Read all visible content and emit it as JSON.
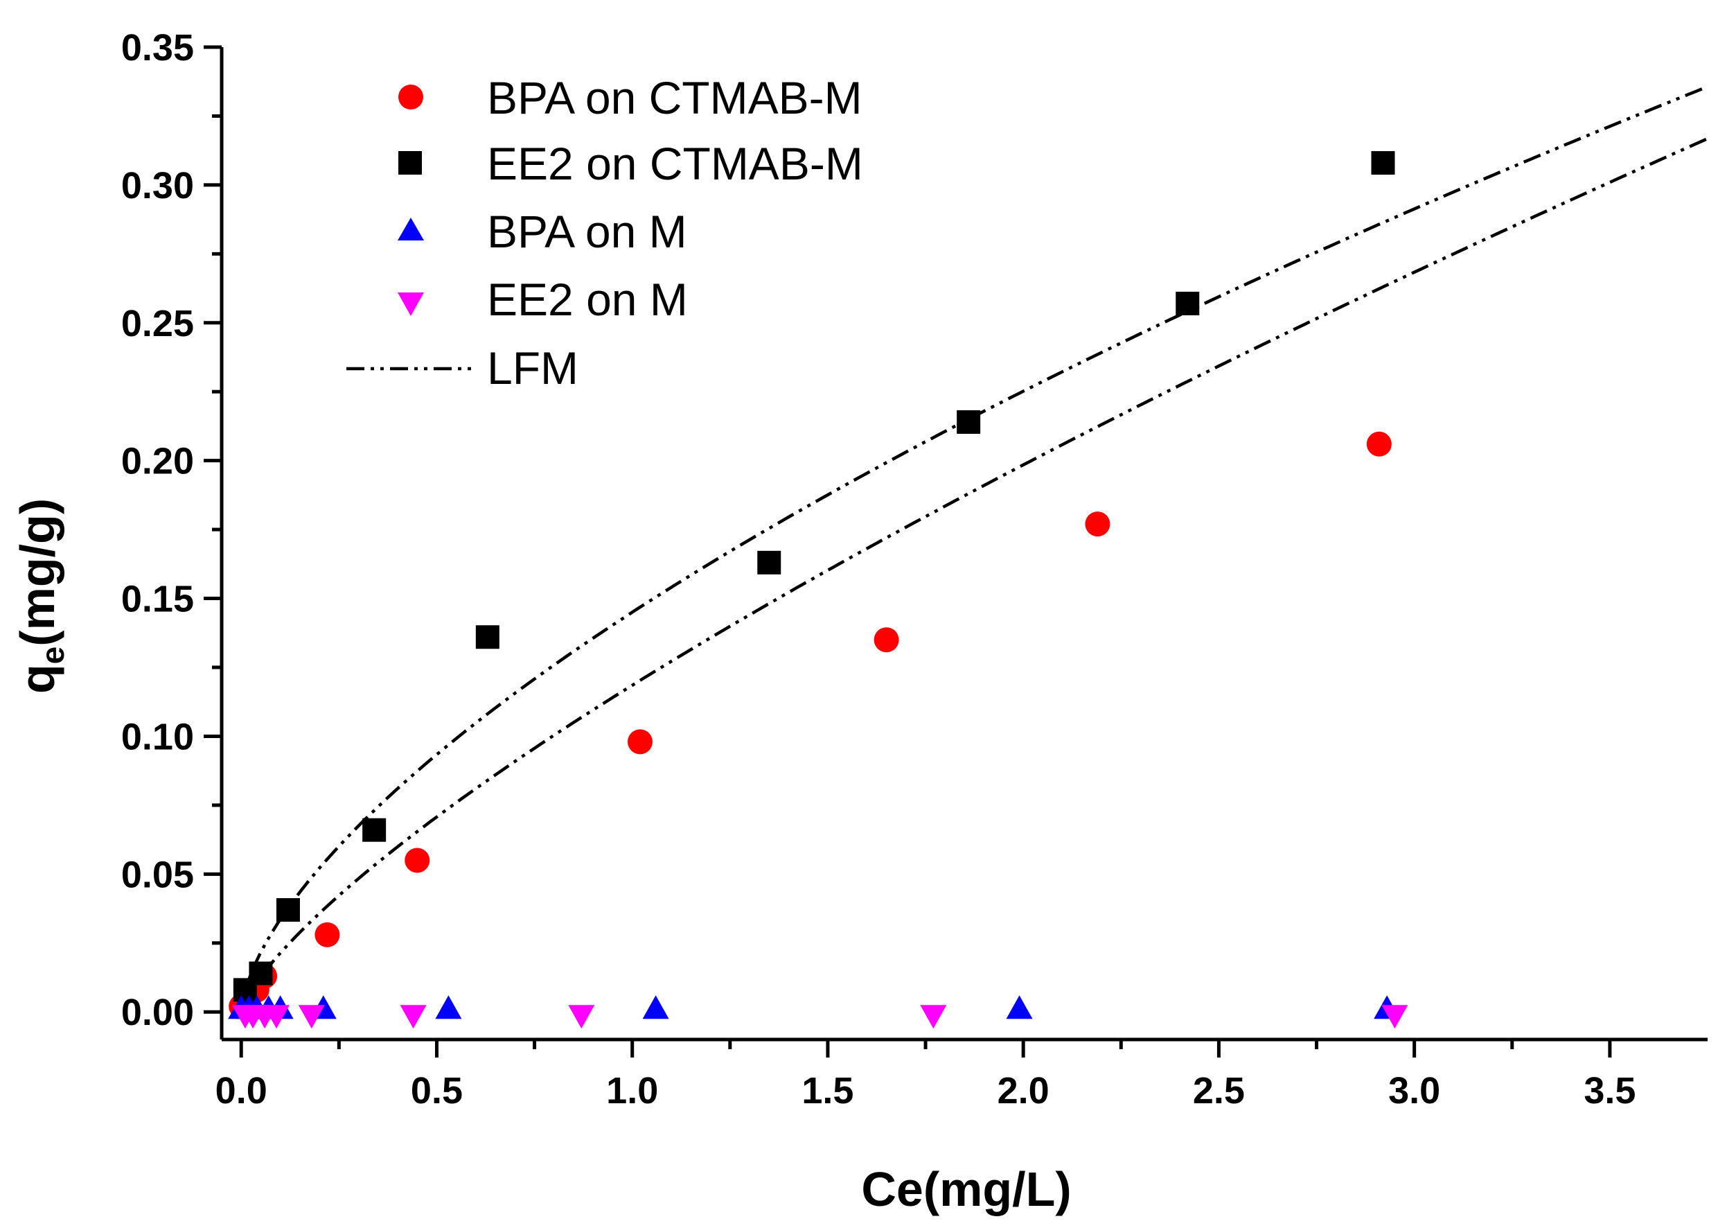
{
  "chart_data": {
    "type": "scatter",
    "title": "",
    "xlabel": "Ce(mg/L)",
    "ylabel_main": "q",
    "ylabel_sub": "e",
    "ylabel_rest": "(mg/g)",
    "xlim": [
      -0.05,
      3.75
    ],
    "ylim": [
      -0.01,
      0.35
    ],
    "xticks": [
      0.0,
      0.5,
      1.0,
      1.5,
      2.0,
      2.5,
      3.0,
      3.5
    ],
    "xtick_labels": [
      "0.0",
      "0.5",
      "1.0",
      "1.5",
      "2.0",
      "2.5",
      "3.0",
      "3.5"
    ],
    "yticks": [
      0.0,
      0.05,
      0.1,
      0.15,
      0.2,
      0.25,
      0.3,
      0.35
    ],
    "ytick_labels": [
      "0.00",
      "0.05",
      "0.10",
      "0.15",
      "0.20",
      "0.25",
      "0.30",
      "0.35"
    ],
    "grid": false,
    "legend_position": "top-left",
    "series": [
      {
        "name": "BPA on CTMAB-M",
        "marker": "circle",
        "color": "#ff0000",
        "x": [
          0.0,
          0.02,
          0.04,
          0.06,
          0.22,
          0.45,
          1.02,
          1.65,
          2.19,
          2.91
        ],
        "y": [
          0.002,
          0.005,
          0.008,
          0.013,
          0.028,
          0.055,
          0.098,
          0.135,
          0.177,
          0.206
        ]
      },
      {
        "name": "EE2 on CTMAB-M",
        "marker": "square",
        "color": "#000000",
        "x": [
          0.01,
          0.05,
          0.12,
          0.34,
          0.63,
          1.35,
          1.86,
          2.42,
          2.92
        ],
        "y": [
          0.008,
          0.014,
          0.037,
          0.066,
          0.136,
          0.163,
          0.214,
          0.257,
          0.308
        ]
      },
      {
        "name": "BPA on M",
        "marker": "triangle-up",
        "color": "#0000ff",
        "x": [
          0.0,
          0.02,
          0.04,
          0.07,
          0.1,
          0.21,
          0.53,
          1.06,
          1.99,
          2.93
        ],
        "y": [
          0.001,
          0.001,
          0.001,
          0.001,
          0.001,
          0.001,
          0.001,
          0.001,
          0.001,
          0.001
        ]
      },
      {
        "name": "EE2 on M",
        "marker": "triangle-down",
        "color": "#ff00ff",
        "x": [
          0.01,
          0.03,
          0.06,
          0.09,
          0.18,
          0.44,
          0.87,
          1.77,
          2.95
        ],
        "y": [
          -0.001,
          -0.001,
          -0.001,
          -0.001,
          -0.001,
          -0.001,
          -0.001,
          -0.001,
          -0.001
        ]
      }
    ],
    "fit_lines": [
      {
        "name": "LFM",
        "style": "dash-dot-dot",
        "color": "#000000",
        "xmax": 3.75,
        "K": 0.1185,
        "n": 0.744
      },
      {
        "name": "LFM",
        "style": "dash-dot-dot",
        "color": "#000000",
        "xmax": 3.75,
        "K": 0.145,
        "n": 0.635
      }
    ],
    "legend": [
      "BPA on CTMAB-M",
      "EE2 on CTMAB-M",
      "BPA on M",
      "EE2 on M",
      "LFM"
    ]
  }
}
